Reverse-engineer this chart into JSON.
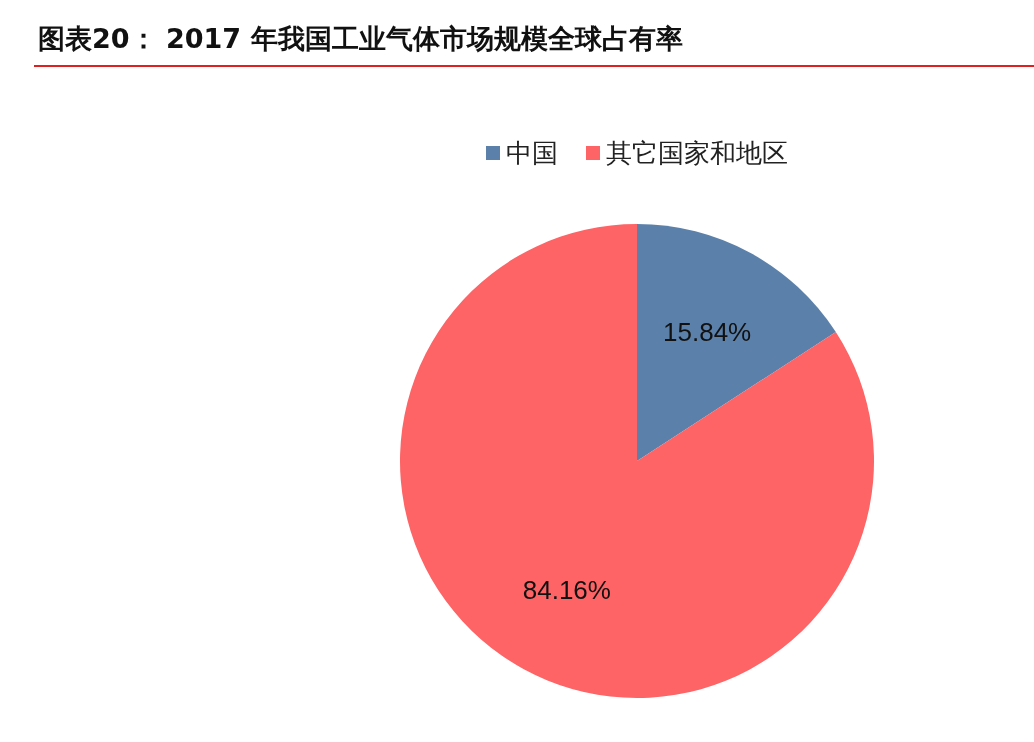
{
  "chart_data": {
    "type": "pie",
    "title": "图表20： 2017 年我国工业气体市场规模全球占有率",
    "categories": [
      "中国",
      "其它国家和地区"
    ],
    "values": [
      15.84,
      84.16
    ],
    "colors": [
      "#5b80aa",
      "#fe6365"
    ],
    "value_labels": [
      "15.84%",
      "84.16%"
    ],
    "legend": "top"
  }
}
